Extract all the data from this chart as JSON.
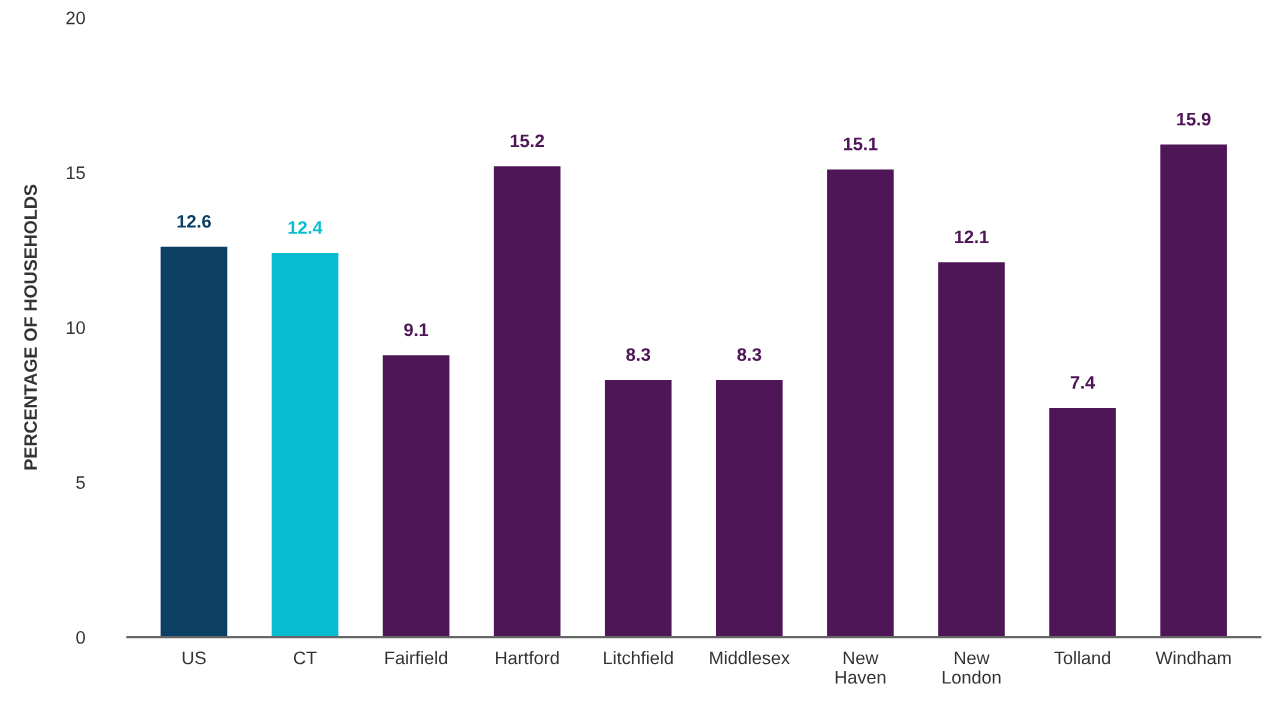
{
  "chart_data": {
    "type": "bar",
    "ylabel": "PERCENTAGE OF HOUSEHOLDS",
    "categories": [
      "US",
      "CT",
      "Fairfield",
      "Hartford",
      "Litchfield",
      "Middlesex",
      "New\nHaven",
      "New\nLondon",
      "Tolland",
      "Windham"
    ],
    "values": [
      12.6,
      12.4,
      9.1,
      15.2,
      8.3,
      8.3,
      15.1,
      12.1,
      7.4,
      15.9
    ],
    "colors": [
      "#0b3f63",
      "#0abcd1",
      "#4f1657",
      "#4f1657",
      "#4f1657",
      "#4f1657",
      "#4f1657",
      "#4f1657",
      "#4f1657",
      "#4f1657"
    ],
    "ylim": [
      0,
      20
    ],
    "yticks": [
      0,
      5,
      10,
      15,
      20
    ],
    "grid": false,
    "data_labels": true
  }
}
